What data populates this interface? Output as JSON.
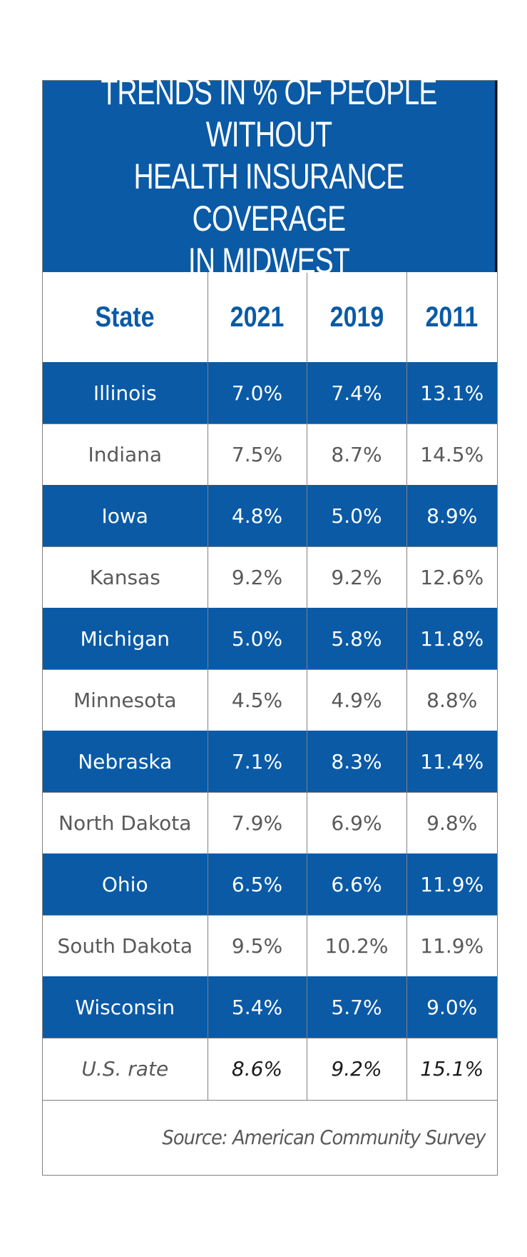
{
  "chart_data": {
    "type": "table",
    "title": "TRENDS IN % OF PEOPLE WITHOUT\nHEALTH INSURANCE COVERAGE\nIN MIDWEST",
    "columns": [
      "State",
      "2021",
      "2019",
      "2011"
    ],
    "rows": [
      {
        "state": "Illinois",
        "y2021": "7.0%",
        "y2019": "7.4%",
        "y2011": "13.1%"
      },
      {
        "state": "Indiana",
        "y2021": "7.5%",
        "y2019": "8.7%",
        "y2011": "14.5%"
      },
      {
        "state": "Iowa",
        "y2021": "4.8%",
        "y2019": "5.0%",
        "y2011": "8.9%"
      },
      {
        "state": "Kansas",
        "y2021": "9.2%",
        "y2019": "9.2%",
        "y2011": "12.6%"
      },
      {
        "state": "Michigan",
        "y2021": "5.0%",
        "y2019": "5.8%",
        "y2011": "11.8%"
      },
      {
        "state": "Minnesota",
        "y2021": "4.5%",
        "y2019": "4.9%",
        "y2011": "8.8%"
      },
      {
        "state": "Nebraska",
        "y2021": "7.1%",
        "y2019": "8.3%",
        "y2011": "11.4%"
      },
      {
        "state": "North Dakota",
        "y2021": "7.9%",
        "y2019": "6.9%",
        "y2011": "9.8%"
      },
      {
        "state": "Ohio",
        "y2021": "6.5%",
        "y2019": "6.6%",
        "y2011": "11.9%"
      },
      {
        "state": "South Dakota",
        "y2021": "9.5%",
        "y2019": "10.2%",
        "y2011": "11.9%"
      },
      {
        "state": "Wisconsin",
        "y2021": "5.4%",
        "y2019": "5.7%",
        "y2011": "9.0%"
      }
    ],
    "us_rate": {
      "label": "U.S. rate",
      "y2021": "8.6%",
      "y2019": "9.2%",
      "y2011": "15.1%"
    },
    "source": "Source: American Community Survey"
  },
  "colors": {
    "header_blue": "#0a5aa6",
    "row_text_gray": "#595959",
    "grid_gray": "#808080"
  }
}
